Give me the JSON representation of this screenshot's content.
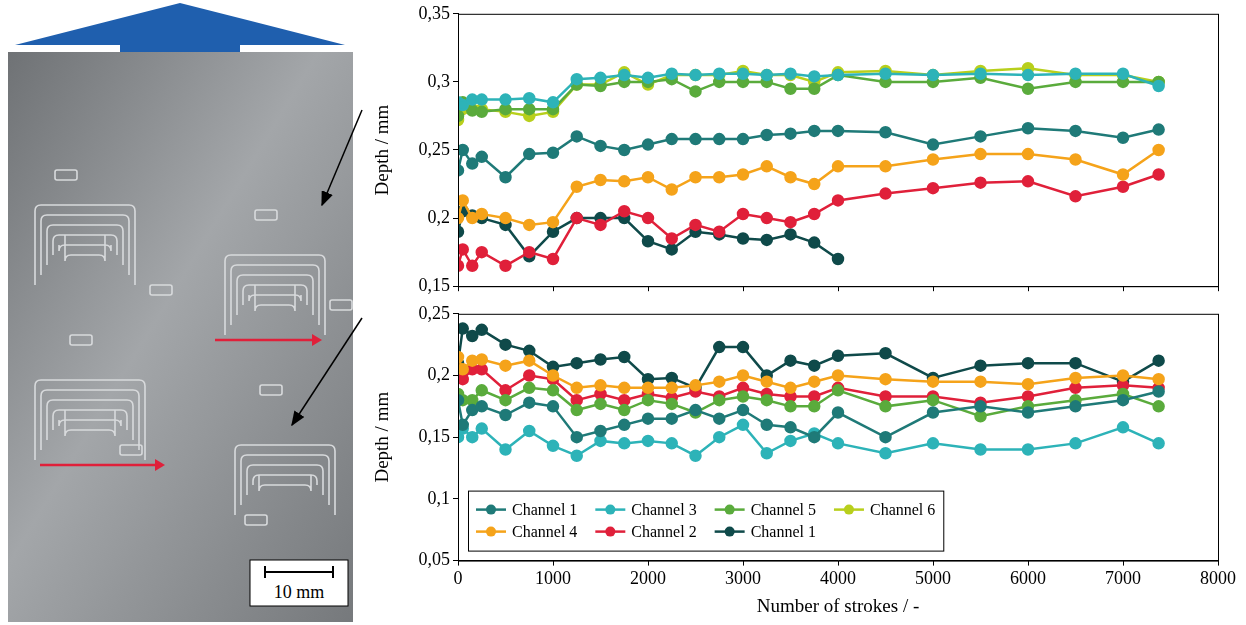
{
  "image": {
    "scale_bar": "10 mm"
  },
  "chart_data": [
    {
      "type": "line",
      "y_label": "Depth / mm",
      "x": [
        0,
        50,
        150,
        250,
        500,
        750,
        1000,
        1250,
        1500,
        1750,
        2000,
        2250,
        2500,
        2750,
        3000,
        3250,
        3500,
        3750,
        4000,
        4500,
        5000,
        5500,
        6000,
        6500,
        7000,
        7375
      ],
      "xlim": [
        0,
        8000
      ],
      "xticks": [
        0,
        1000,
        2000,
        3000,
        4000,
        5000,
        6000,
        7000,
        8000
      ],
      "ylim": [
        0.15,
        0.35
      ],
      "yticks": [
        {
          "value": 0.15,
          "label": "0,15"
        },
        {
          "value": 0.2,
          "label": "0,2"
        },
        {
          "value": 0.25,
          "label": "0,25"
        },
        {
          "value": 0.3,
          "label": "0,3"
        },
        {
          "value": 0.35,
          "label": "0,35"
        }
      ],
      "grid": false,
      "tick_labels": "y",
      "marker": "circle",
      "line_style": "solid",
      "series": [
        {
          "name": "Channel 1",
          "color": "#1f7a78",
          "values": [
            0.235,
            0.25,
            0.24,
            0.245,
            0.23,
            0.247,
            0.248,
            0.26,
            0.253,
            0.25,
            0.254,
            0.258,
            0.258,
            0.258,
            0.258,
            0.261,
            0.262,
            0.264,
            0.264,
            0.263,
            0.254,
            0.26,
            0.266,
            0.264,
            0.259,
            0.265
          ]
        },
        {
          "name": "Channel 3",
          "color": "#2db3b8",
          "values": [
            0.285,
            0.283,
            0.287,
            0.287,
            0.287,
            0.288,
            0.285,
            0.302,
            0.303,
            0.305,
            0.303,
            0.306,
            0.305,
            0.306,
            0.306,
            0.305,
            0.306,
            0.304,
            0.305,
            0.306,
            0.305,
            0.306,
            0.305,
            0.306,
            0.306,
            0.297
          ]
        },
        {
          "name": "Channel 5",
          "color": "#5aab3c",
          "values": [
            0.275,
            0.285,
            0.279,
            0.278,
            0.28,
            0.28,
            0.28,
            0.298,
            0.297,
            0.3,
            0.3,
            0.302,
            0.293,
            0.3,
            0.3,
            0.3,
            0.295,
            0.295,
            0.305,
            0.3,
            0.3,
            0.303,
            0.295,
            0.3,
            0.3,
            0.3
          ]
        },
        {
          "name": "Channel 6",
          "color": "#b8cf1c",
          "values": [
            0.272,
            0.28,
            0.28,
            0.28,
            0.278,
            0.275,
            0.278,
            0.298,
            0.298,
            0.307,
            0.298,
            0.305,
            0.305,
            0.305,
            0.308,
            0.305,
            0.305,
            0.3,
            0.307,
            0.308,
            0.305,
            0.308,
            0.31,
            0.305,
            0.305,
            0.3
          ]
        },
        {
          "name": "Channel 4",
          "color": "#f5a31a",
          "values": [
            0.2,
            0.213,
            0.2,
            0.203,
            0.2,
            0.195,
            0.197,
            0.223,
            0.228,
            0.227,
            0.23,
            0.221,
            0.23,
            0.23,
            0.232,
            0.238,
            0.23,
            0.225,
            0.238,
            0.238,
            0.243,
            0.247,
            0.247,
            0.243,
            0.232,
            0.25
          ]
        },
        {
          "name": "Channel 2",
          "color": "#e0203a",
          "values": [
            0.165,
            0.177,
            0.165,
            0.175,
            0.165,
            0.175,
            0.17,
            0.2,
            0.195,
            0.205,
            0.2,
            0.185,
            0.195,
            0.19,
            0.203,
            0.2,
            0.197,
            0.203,
            0.213,
            0.218,
            0.222,
            0.226,
            0.227,
            0.216,
            0.223,
            0.232
          ]
        },
        {
          "name": "Channel 1",
          "color": "#0f4a4a",
          "values": [
            0.19,
            0.205,
            0.202,
            0.2,
            0.195,
            0.172,
            0.19,
            0.2,
            0.2,
            0.2,
            0.183,
            0.177,
            0.19,
            0.188,
            0.185,
            0.184,
            0.188,
            0.182,
            0.17,
            null,
            null,
            null,
            null,
            null,
            null,
            null
          ]
        }
      ]
    },
    {
      "type": "line",
      "y_label": "Depth / mm",
      "x_label": "Number of strokes / -",
      "x": [
        0,
        50,
        150,
        250,
        500,
        750,
        1000,
        1250,
        1500,
        1750,
        2000,
        2250,
        2500,
        2750,
        3000,
        3250,
        3500,
        3750,
        4000,
        4500,
        5000,
        5500,
        6000,
        6500,
        7000,
        7375
      ],
      "xlim": [
        0,
        8000
      ],
      "xticks": [
        0,
        1000,
        2000,
        3000,
        4000,
        5000,
        6000,
        7000,
        8000
      ],
      "ylim": [
        0.05,
        0.25
      ],
      "yticks": [
        {
          "value": 0.05,
          "label": "0,05"
        },
        {
          "value": 0.1,
          "label": "0,1"
        },
        {
          "value": 0.15,
          "label": "0,15"
        },
        {
          "value": 0.2,
          "label": "0,2"
        },
        {
          "value": 0.25,
          "label": "0,25"
        }
      ],
      "grid": false,
      "legend": "bottom-left",
      "marker": "circle",
      "line_style": "solid",
      "series": [
        {
          "name": "Channel 1",
          "color": "#1f7a78",
          "values": [
            0.18,
            0.16,
            0.172,
            0.175,
            0.168,
            0.178,
            0.175,
            0.15,
            0.155,
            0.16,
            0.165,
            0.165,
            0.172,
            0.165,
            0.172,
            0.16,
            0.158,
            0.15,
            0.17,
            0.15,
            0.17,
            0.175,
            0.17,
            0.175,
            0.18,
            0.187
          ]
        },
        {
          "name": "Channel 3",
          "color": "#2db3b8",
          "values": [
            0.15,
            0.157,
            0.15,
            0.157,
            0.14,
            0.155,
            0.143,
            0.135,
            0.147,
            0.145,
            0.147,
            0.145,
            0.135,
            0.15,
            0.16,
            0.137,
            0.147,
            0.153,
            0.145,
            0.137,
            0.145,
            0.14,
            0.14,
            0.145,
            0.158,
            0.145
          ]
        },
        {
          "name": "Channel 5",
          "color": "#5aab3c",
          "values": [
            0.185,
            0.18,
            0.18,
            0.188,
            0.18,
            0.19,
            0.188,
            0.172,
            0.177,
            0.172,
            0.18,
            0.177,
            0.17,
            0.18,
            0.183,
            0.18,
            0.175,
            0.175,
            0.188,
            0.175,
            0.18,
            0.167,
            0.175,
            0.18,
            0.185,
            0.175
          ]
        },
        {
          "name": "Channel 4",
          "color": "#f5a31a",
          "values": [
            0.215,
            0.205,
            0.212,
            0.213,
            0.208,
            0.212,
            0.2,
            0.19,
            0.192,
            0.19,
            0.19,
            0.19,
            0.192,
            0.195,
            0.2,
            0.195,
            0.19,
            0.195,
            0.2,
            0.197,
            0.195,
            0.195,
            0.193,
            0.198,
            0.2,
            0.197
          ]
        },
        {
          "name": "Channel 2",
          "color": "#e0203a",
          "values": [
            0.2,
            0.197,
            0.205,
            0.205,
            0.188,
            0.2,
            0.197,
            0.18,
            0.185,
            0.18,
            0.185,
            0.182,
            0.187,
            0.183,
            0.19,
            0.185,
            0.183,
            0.183,
            0.19,
            0.183,
            0.183,
            0.178,
            0.183,
            0.19,
            0.192,
            0.19
          ]
        },
        {
          "name": "Channel 1",
          "color": "#0f4a4a",
          "values": [
            0.21,
            0.238,
            0.232,
            0.237,
            0.225,
            0.22,
            0.207,
            0.21,
            0.213,
            0.215,
            0.197,
            0.198,
            0.19,
            0.223,
            0.223,
            0.2,
            0.212,
            0.208,
            0.216,
            0.218,
            0.198,
            0.208,
            0.21,
            0.21,
            0.195,
            0.212
          ]
        }
      ]
    }
  ]
}
